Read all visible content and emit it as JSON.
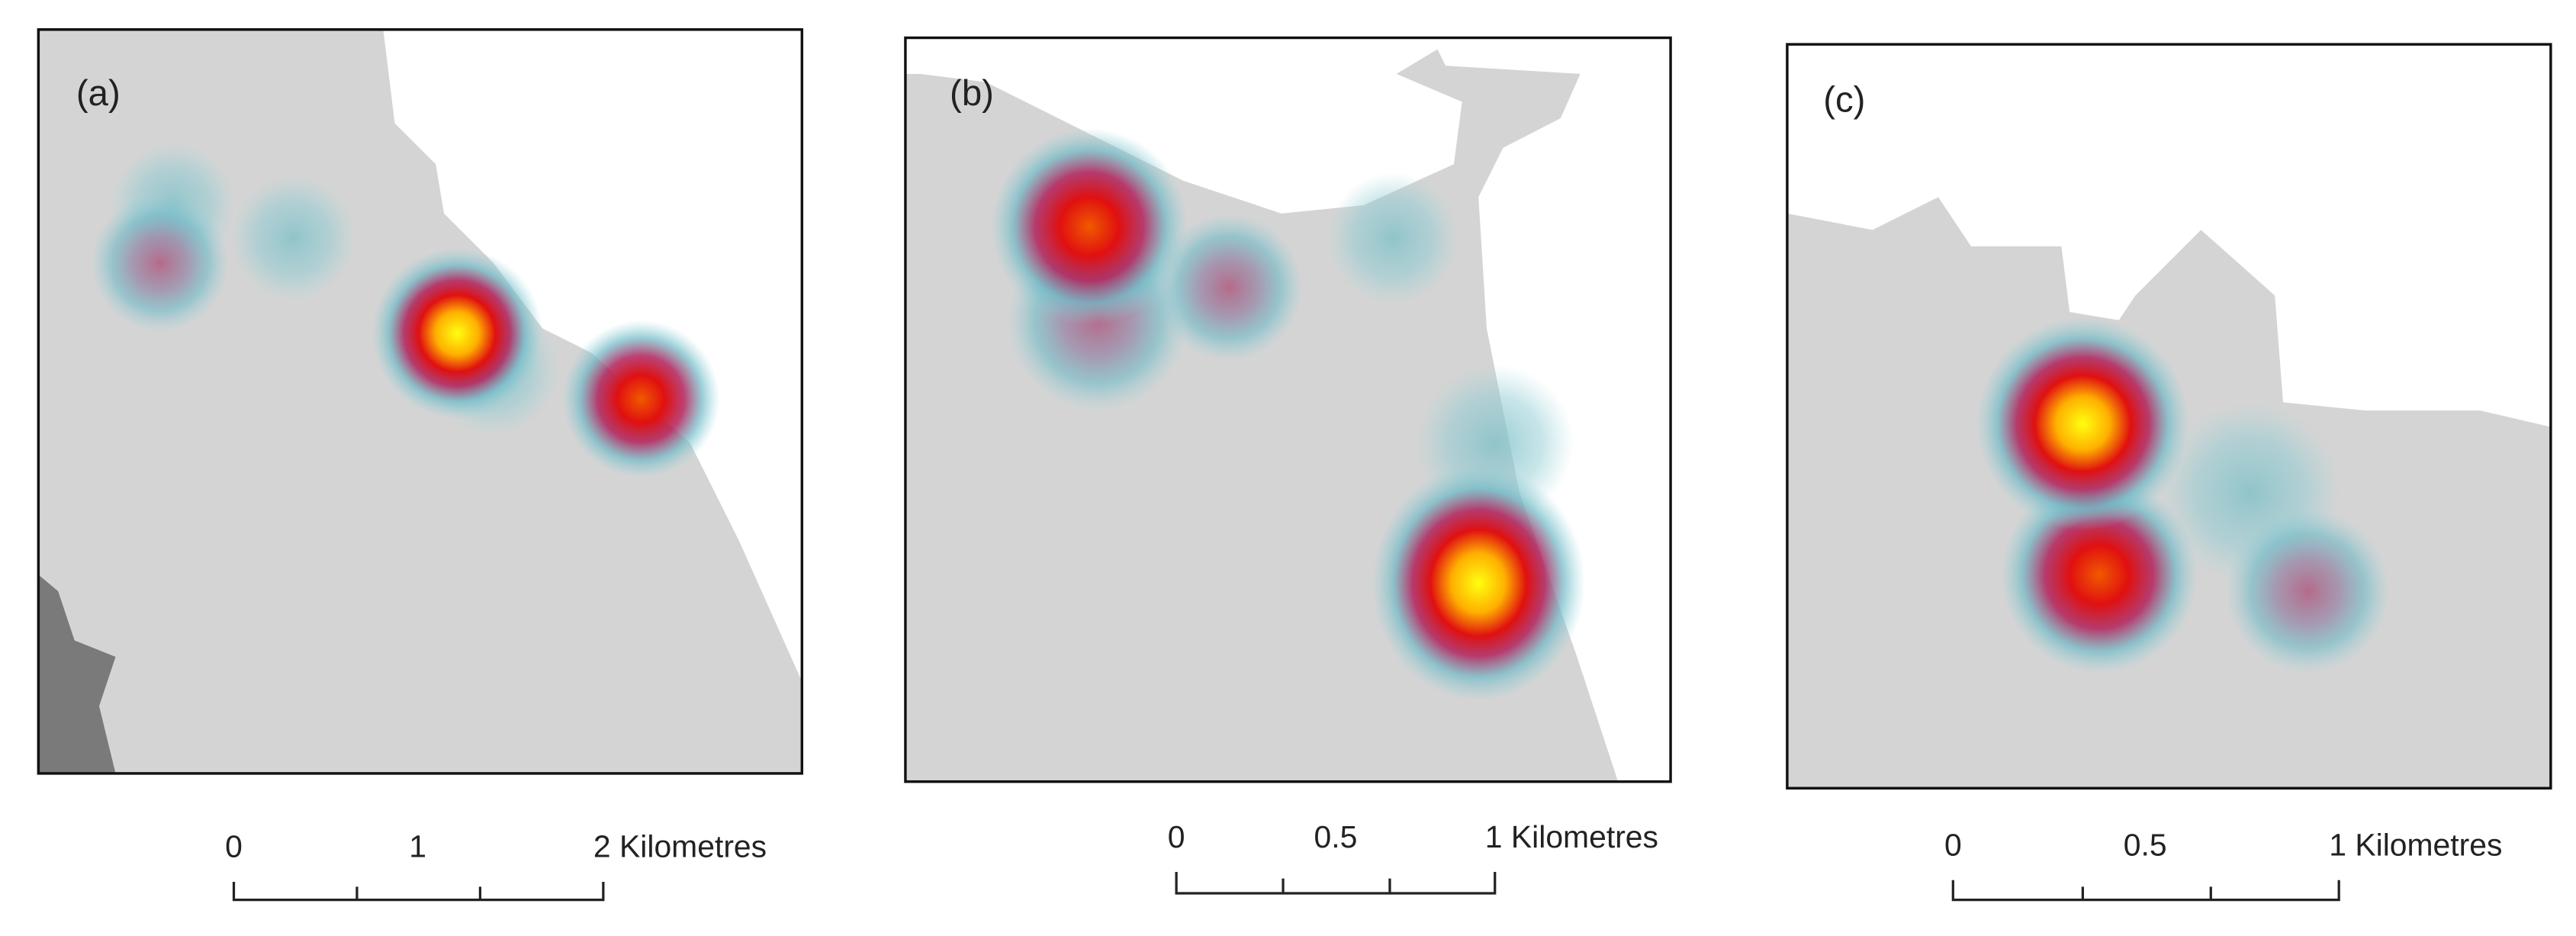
{
  "panels": [
    {
      "label": "(a)",
      "scale_bar": {
        "labels": [
          "0",
          "1",
          "2 Kilometres"
        ]
      }
    },
    {
      "label": "(b)",
      "scale_bar": {
        "labels": [
          "0",
          "0.5",
          "1 Kilometres"
        ]
      }
    },
    {
      "label": "(c)",
      "scale_bar": {
        "labels": [
          "0",
          "0.5",
          "1 Kilometres"
        ]
      }
    }
  ]
}
